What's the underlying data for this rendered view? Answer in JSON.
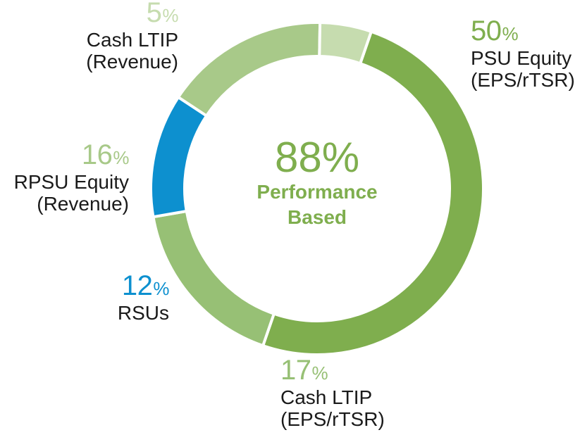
{
  "chart_data": {
    "type": "pie",
    "variant": "donut",
    "center": {
      "value": "88%",
      "label_line1": "Performance",
      "label_line2": "Based"
    },
    "slices": [
      {
        "name": "PSU Equity (EPS/rTSR)",
        "value": 50,
        "pct_label": "50",
        "line1": "PSU Equity",
        "line2": "(EPS/rTSR)",
        "color": "#7fae4e",
        "label_color": "#7fae4e"
      },
      {
        "name": "Cash LTIP (EPS/rTSR)",
        "value": 17,
        "pct_label": "17",
        "line1": "Cash LTIP",
        "line2": "(EPS/rTSR)",
        "color": "#97c075",
        "label_color": "#97c075"
      },
      {
        "name": "RSUs",
        "value": 12,
        "pct_label": "12",
        "line1": "RSUs",
        "line2": "",
        "color": "#0d90cf",
        "label_color": "#0d90cf"
      },
      {
        "name": "RPSU Equity (Revenue)",
        "value": 16,
        "pct_label": "16",
        "line1": "RPSU Equity",
        "line2": "(Revenue)",
        "color": "#a8c989",
        "label_color": "#a8c989"
      },
      {
        "name": "Cash LTIP (Revenue)",
        "value": 5,
        "pct_label": "5",
        "line1": "Cash LTIP",
        "line2": "(Revenue)",
        "color": "#c6dcaf",
        "label_color": "#c6dcaf"
      }
    ],
    "percent_symbol": "%",
    "start_angle_deg": 19
  }
}
